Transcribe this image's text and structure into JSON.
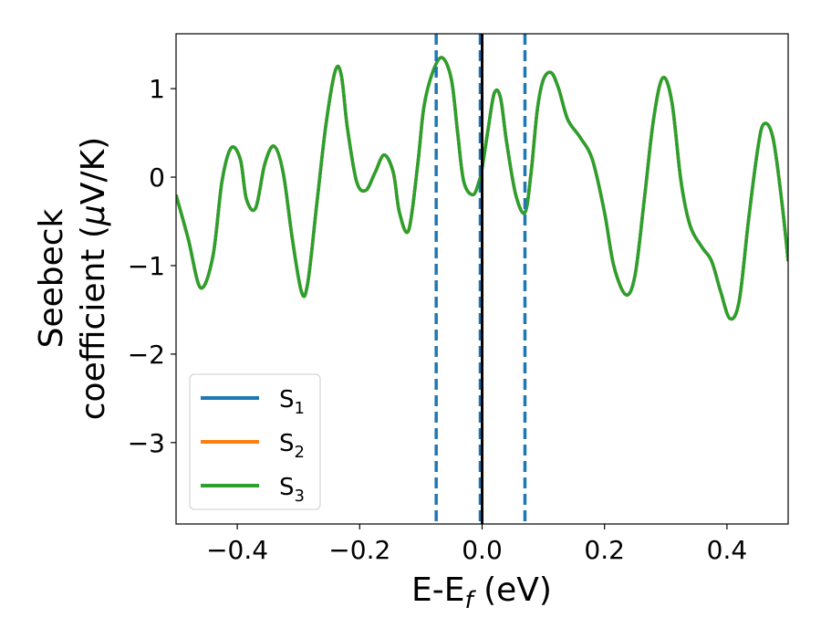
{
  "chart_data": {
    "type": "line",
    "title": "",
    "xlabel": "E-E",
    "xlabel_sub": "f",
    "xlabel_unit": " (eV)",
    "ylabel_line1": "Seebeck",
    "ylabel_line2": "coefficient  (",
    "ylabel_mu": "μ",
    "ylabel_unit": "V/K)",
    "xlim": [
      -0.5,
      0.5
    ],
    "ylim": [
      -3.92,
      1.62
    ],
    "xticks": [
      -0.4,
      -0.2,
      0.0,
      0.2,
      0.4
    ],
    "xtick_labels": [
      "−0.4",
      "−0.2",
      "0.0",
      "0.2",
      "0.4"
    ],
    "yticks": [
      1,
      0,
      -1,
      -2,
      -3
    ],
    "ytick_labels": [
      "1",
      "0",
      "−1",
      "−2",
      "−3"
    ],
    "grid": false,
    "legend_position": "lower-left",
    "vlines": [
      {
        "x": -0.075,
        "style": "dashed",
        "color": "#1f77b4"
      },
      {
        "x": -0.003,
        "style": "dashed",
        "color": "#1f77b4"
      },
      {
        "x": 0.07,
        "style": "dashed",
        "color": "#1f77b4"
      },
      {
        "x": 0.0,
        "style": "solid",
        "color": "#000000"
      }
    ],
    "series": [
      {
        "name": "S",
        "sub": "1",
        "color": "#1f77b4"
      },
      {
        "name": "S",
        "sub": "2",
        "color": "#ff7f0e"
      },
      {
        "name": "S",
        "sub": "3",
        "color": "#2ca02c"
      }
    ],
    "x": [
      -0.5,
      -0.48,
      -0.46,
      -0.44,
      -0.425,
      -0.41,
      -0.395,
      -0.385,
      -0.37,
      -0.355,
      -0.34,
      -0.325,
      -0.31,
      -0.295,
      -0.285,
      -0.27,
      -0.255,
      -0.24,
      -0.23,
      -0.22,
      -0.205,
      -0.19,
      -0.175,
      -0.16,
      -0.145,
      -0.135,
      -0.12,
      -0.105,
      -0.095,
      -0.08,
      -0.065,
      -0.05,
      -0.04,
      -0.03,
      -0.015,
      -0.005,
      0.0,
      0.01,
      0.02,
      0.03,
      0.04,
      0.055,
      0.07,
      0.08,
      0.09,
      0.1,
      0.113,
      0.125,
      0.14,
      0.16,
      0.18,
      0.2,
      0.215,
      0.235,
      0.25,
      0.265,
      0.28,
      0.295,
      0.31,
      0.325,
      0.34,
      0.36,
      0.375,
      0.39,
      0.405,
      0.42,
      0.435,
      0.45,
      0.46,
      0.475,
      0.49,
      0.5
    ],
    "values": [
      -0.2,
      -0.7,
      -1.25,
      -0.9,
      -0.05,
      0.33,
      0.2,
      -0.25,
      -0.35,
      0.15,
      0.35,
      0.05,
      -0.7,
      -1.3,
      -1.2,
      -0.3,
      0.6,
      1.2,
      1.15,
      0.55,
      -0.05,
      -0.15,
      0.05,
      0.25,
      0.05,
      -0.4,
      -0.6,
      0.15,
      0.8,
      1.2,
      1.35,
      1.1,
      0.5,
      -0.05,
      -0.2,
      -0.05,
      0.1,
      0.55,
      0.95,
      0.9,
      0.4,
      -0.2,
      -0.4,
      0.05,
      0.75,
      1.1,
      1.18,
      1.0,
      0.65,
      0.45,
      0.2,
      -0.4,
      -1.0,
      -1.33,
      -1.1,
      -0.25,
      0.65,
      1.12,
      0.85,
      -0.05,
      -0.55,
      -0.8,
      -0.95,
      -1.3,
      -1.6,
      -1.4,
      -0.5,
      0.3,
      0.6,
      0.45,
      -0.3,
      -0.95
    ]
  }
}
